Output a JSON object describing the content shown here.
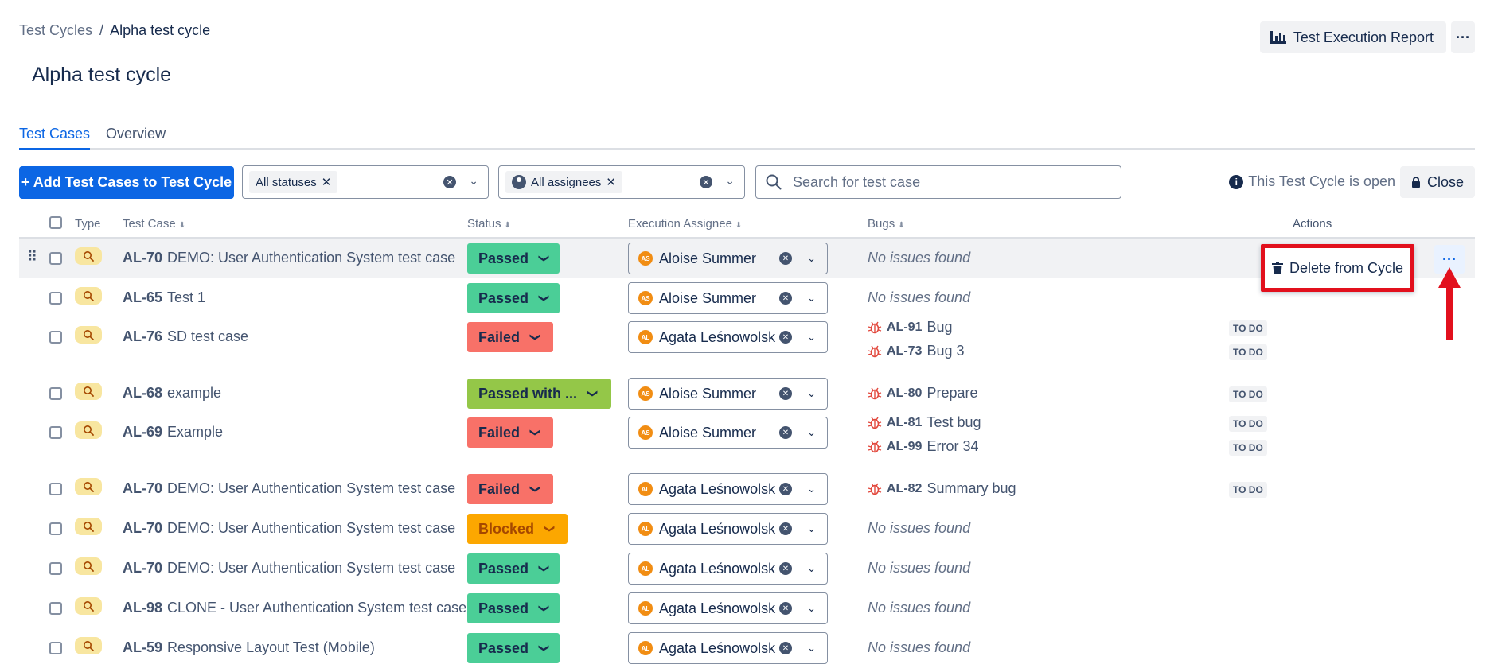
{
  "breadcrumb": {
    "parent": "Test Cycles",
    "separator": "/",
    "current": "Alpha test cycle"
  },
  "page_title": "Alpha test cycle",
  "header_actions": {
    "report_label": "Test Execution Report",
    "more_label": "···"
  },
  "tabs": [
    {
      "label": "Test Cases",
      "active": true
    },
    {
      "label": "Overview",
      "active": false
    }
  ],
  "toolbar": {
    "add_label": "+ Add Test Cases to Test Cycle",
    "status_filter_chip": "All statuses",
    "assignee_filter_chip": "All assignees",
    "search_placeholder": "Search for test case",
    "cycle_state": "This Test Cycle is open",
    "close_label": "Close"
  },
  "columns": {
    "type": "Type",
    "test_case": "Test Case",
    "status": "Status",
    "assignee": "Execution Assignee",
    "bugs": "Bugs",
    "actions": "Actions"
  },
  "no_issues_text": "No issues found",
  "rows": [
    {
      "key": "AL-70",
      "name": "DEMO: User Authentication System test case",
      "status": "Passed",
      "assignee": "Aloise Summer",
      "initials": "AS",
      "bugs": []
    },
    {
      "key": "AL-65",
      "name": "Test 1",
      "status": "Passed",
      "assignee": "Aloise Summer",
      "initials": "AS",
      "bugs": []
    },
    {
      "key": "AL-76",
      "name": "SD test case",
      "status": "Failed",
      "assignee": "Agata Leśnowolsk",
      "initials": "AL",
      "bugs": [
        {
          "key": "AL-91",
          "title": "Bug",
          "state": "TO DO"
        },
        {
          "key": "AL-73",
          "title": "Bug 3",
          "state": "TO DO"
        }
      ]
    },
    {
      "key": "AL-68",
      "name": "example",
      "status": "Passed with ...",
      "assignee": "Aloise Summer",
      "initials": "AS",
      "bugs": [
        {
          "key": "AL-80",
          "title": "Prepare",
          "state": "TO DO"
        }
      ]
    },
    {
      "key": "AL-69",
      "name": "Example",
      "status": "Failed",
      "assignee": "Aloise Summer",
      "initials": "AS",
      "bugs": [
        {
          "key": "AL-81",
          "title": "Test bug",
          "state": "TO DO"
        },
        {
          "key": "AL-99",
          "title": "Error 34",
          "state": "TO DO"
        }
      ]
    },
    {
      "key": "AL-70",
      "name": "DEMO: User Authentication System test case",
      "status": "Failed",
      "assignee": "Agata Leśnowolsk",
      "initials": "AL",
      "bugs": [
        {
          "key": "AL-82",
          "title": "Summary bug",
          "state": "TO DO"
        }
      ]
    },
    {
      "key": "AL-70",
      "name": "DEMO: User Authentication System test case",
      "status": "Blocked",
      "assignee": "Agata Leśnowolsk",
      "initials": "AL",
      "bugs": []
    },
    {
      "key": "AL-70",
      "name": "DEMO: User Authentication System test case",
      "status": "Passed",
      "assignee": "Agata Leśnowolsk",
      "initials": "AL",
      "bugs": []
    },
    {
      "key": "AL-98",
      "name": "CLONE - User Authentication System test case",
      "status": "Passed",
      "assignee": "Agata Leśnowolsk",
      "initials": "AL",
      "bugs": []
    },
    {
      "key": "AL-59",
      "name": "Responsive Layout Test (Mobile)",
      "status": "Passed",
      "assignee": "Agata Leśnowolsk",
      "initials": "AL",
      "bugs": []
    }
  ],
  "context_menu": {
    "delete_label": "Delete from Cycle"
  },
  "colors": {
    "accent": "#0c66e4",
    "passed": "#4bce97",
    "failed": "#f87168",
    "passed_with": "#94c748",
    "blocked": "#fca700",
    "highlight": "#e2101d"
  },
  "icons": {
    "report": "bar-chart-icon",
    "search": "search-icon",
    "info": "info-icon",
    "lock": "lock-icon",
    "trash": "trash-icon",
    "type": "magnifier-icon",
    "bug": "bug-icon"
  }
}
